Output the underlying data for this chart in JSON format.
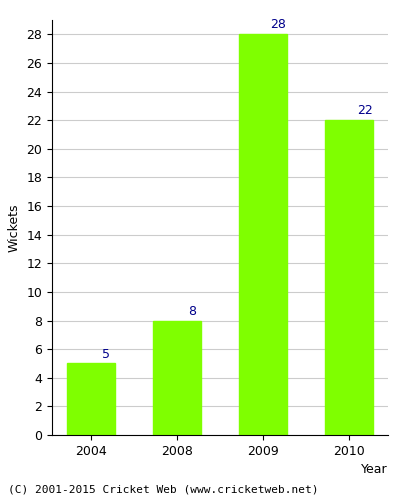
{
  "categories": [
    "2004",
    "2008",
    "2009",
    "2010"
  ],
  "values": [
    5,
    8,
    28,
    22
  ],
  "bar_color": "#7FFF00",
  "bar_edge_color": "#7FFF00",
  "xlabel": "Year",
  "ylabel": "Wickets",
  "ylim": [
    0,
    29
  ],
  "yticks": [
    0,
    2,
    4,
    6,
    8,
    10,
    12,
    14,
    16,
    18,
    20,
    22,
    24,
    26,
    28
  ],
  "label_color": "#00008B",
  "label_fontsize": 9,
  "axis_label_fontsize": 9,
  "tick_fontsize": 9,
  "footer_text": "(C) 2001-2015 Cricket Web (www.cricketweb.net)",
  "footer_fontsize": 8,
  "background_color": "#ffffff",
  "plot_bg_color": "#ffffff",
  "grid_color": "#cccccc",
  "bar_width": 0.55
}
